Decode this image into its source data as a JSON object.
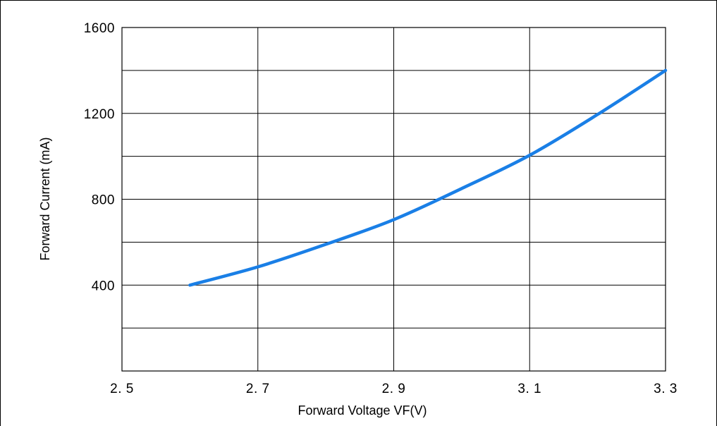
{
  "chart_data": {
    "type": "line",
    "title": "",
    "xlabel": "Forward Voltage  VF(V)",
    "ylabel": "Forward Current (mA)",
    "xlim": [
      2.5,
      3.3
    ],
    "ylim": [
      0,
      1600
    ],
    "x_ticks": [
      2.5,
      2.7,
      2.9,
      3.1,
      3.3
    ],
    "x_tick_labels": [
      "2. 5",
      "2. 7",
      "2. 9",
      "3. 1",
      "3. 3"
    ],
    "y_ticks": [
      400,
      800,
      1200,
      1600
    ],
    "y_tick_labels": [
      "400",
      "800",
      "1200",
      "1600"
    ],
    "y_grid_step": 200,
    "grid": true,
    "legend": "none",
    "series": [
      {
        "color": "#1a7fe6",
        "x": [
          2.6,
          2.7,
          2.8,
          2.9,
          3.0,
          3.1,
          3.2,
          3.3
        ],
        "y": [
          400,
          485,
          590,
          705,
          850,
          1005,
          1195,
          1400
        ]
      }
    ]
  }
}
